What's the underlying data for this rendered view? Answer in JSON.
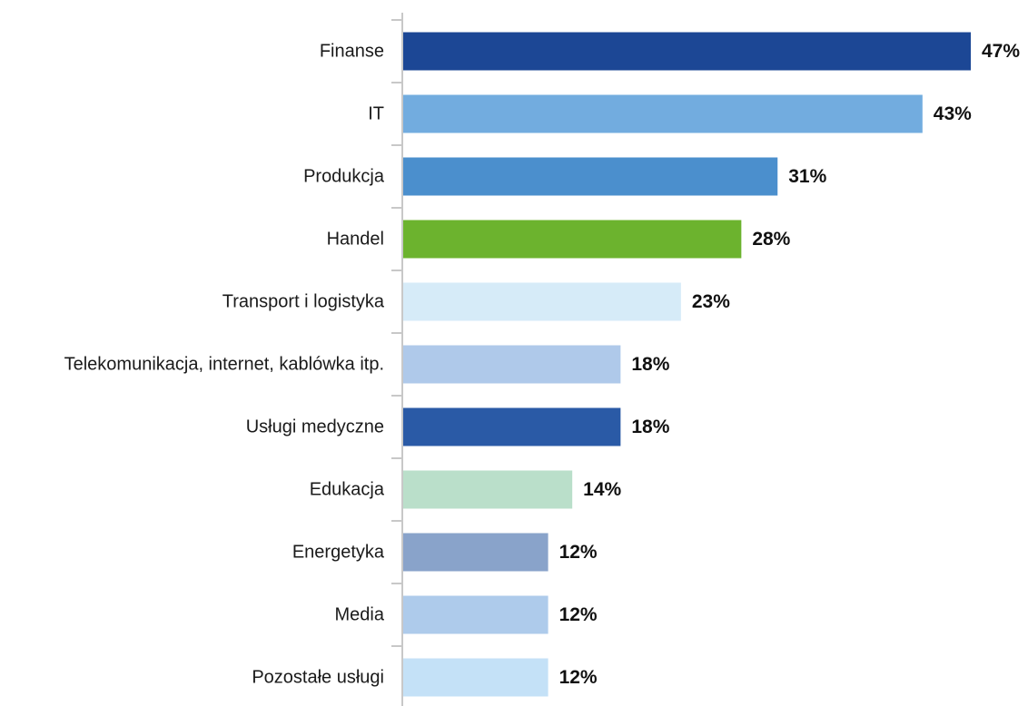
{
  "chart_data": {
    "type": "bar",
    "orientation": "horizontal",
    "title": "",
    "xlabel": "",
    "ylabel": "",
    "grid": false,
    "xlim": [
      0,
      47
    ],
    "categories": [
      "Finanse",
      "IT",
      "Produkcja",
      "Handel",
      "Transport i logistyka",
      "Telekomunikacja, internet, kablówka itp.",
      "Usługi medyczne",
      "Edukacja",
      "Energetyka",
      "Media",
      "Pozostałe usługi"
    ],
    "values": [
      47,
      43,
      31,
      28,
      23,
      18,
      18,
      14,
      12,
      12,
      12
    ],
    "value_labels": [
      "47%",
      "43%",
      "31%",
      "28%",
      "23%",
      "18%",
      "18%",
      "14%",
      "12%",
      "12%",
      "12%"
    ],
    "colors": [
      "#1c4795",
      "#72acdf",
      "#4b8fcd",
      "#6cb32e",
      "#d6ebf8",
      "#afc9ea",
      "#2a5aa6",
      "#badfca",
      "#89a3ca",
      "#aecbeb",
      "#c4e1f7"
    ]
  }
}
